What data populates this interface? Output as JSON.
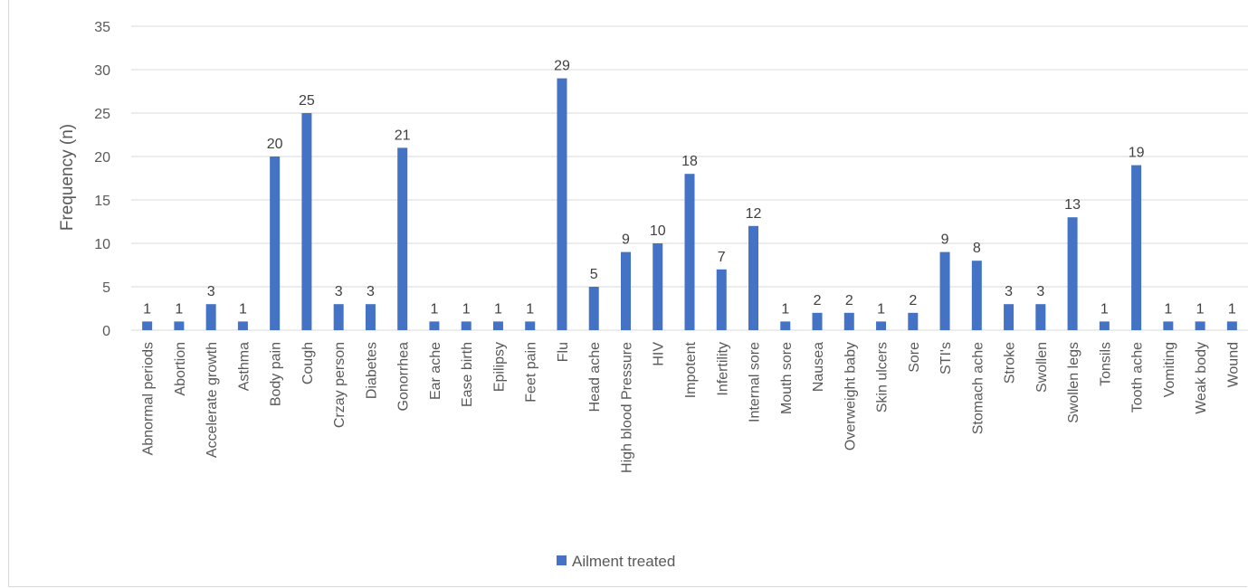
{
  "chart_data": {
    "type": "bar",
    "title": "",
    "xlabel": "",
    "ylabel": "Frequency (n)",
    "ylim": [
      0,
      35
    ],
    "yticks": [
      0,
      5,
      10,
      15,
      20,
      25,
      30,
      35
    ],
    "grid": true,
    "legend_position": "bottom-center",
    "categories": [
      "Abnormal periods",
      "Abortion",
      "Accelerate growth",
      "Asthma",
      "Body pain",
      "Cough",
      "Crzay  person",
      "Diabetes",
      "Gonorrhea",
      "Ear ache",
      "Ease birth",
      "Epilipsy",
      "Feet pain",
      "Flu",
      "Head ache",
      "High blood Pressure",
      "HIV",
      "Impotent",
      "Infertility",
      "Internal sore",
      "Mouth sore",
      "Nausea",
      "Overweight baby",
      "Skin ulcers",
      "Sore",
      "STI's",
      "Stomach ache",
      "Stroke",
      "Swollen",
      "Swollen legs",
      "Tonsils",
      "Tooth ache",
      "Vomiting",
      "Weak body",
      "Wound"
    ],
    "series": [
      {
        "name": "Ailment treated",
        "color": "#4472c4",
        "values": [
          1,
          1,
          3,
          1,
          20,
          25,
          3,
          3,
          21,
          1,
          1,
          1,
          1,
          29,
          5,
          9,
          10,
          18,
          7,
          12,
          1,
          2,
          2,
          1,
          2,
          9,
          8,
          3,
          3,
          13,
          1,
          19,
          1,
          1,
          1
        ]
      }
    ],
    "colors": {
      "gridline": "#d9d9d9",
      "axis_text": "#595959",
      "data_label_text": "#404040"
    }
  }
}
